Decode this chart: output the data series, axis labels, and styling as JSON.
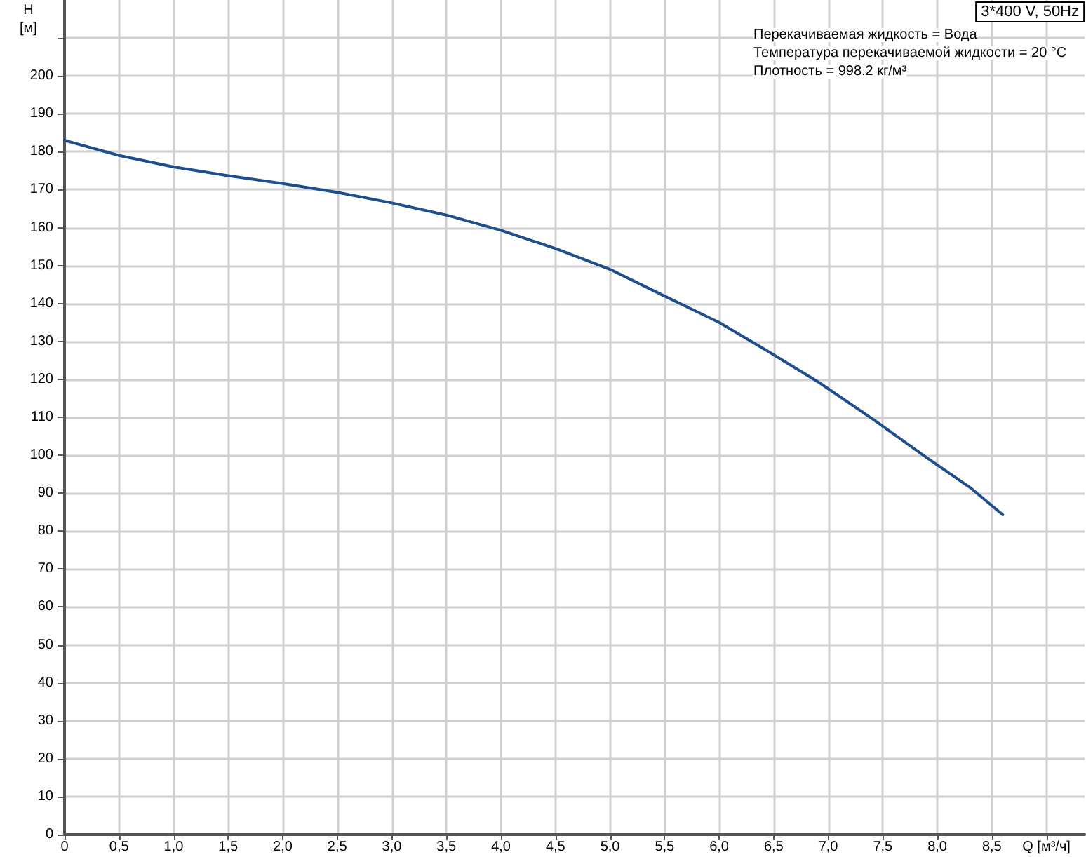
{
  "chart_data": {
    "type": "line",
    "title": "3*400 V, 50Hz",
    "annotations": [
      "Перекачиваемая жидкость = Вода",
      "Температура перекачиваемой жидкости = 20 °C",
      "Плотность = 998.2 кг/м³"
    ],
    "xlabel": "Q [м³/ч]",
    "ylabel": "H\n[м]",
    "x": [
      0,
      0.5,
      1.0,
      1.5,
      2.0,
      2.5,
      3.0,
      3.5,
      4.0,
      4.5,
      5.0,
      5.44,
      6.0,
      6.43,
      6.92,
      7.42,
      7.91,
      8.3,
      8.6
    ],
    "series": [
      {
        "color": "#1f4e8c",
        "values": [
          183,
          179,
          176,
          173.7,
          171.6,
          169.3,
          166.5,
          163.3,
          159.3,
          154.5,
          149,
          142.8,
          135,
          127.7,
          119.1,
          109.3,
          99.2,
          91.5,
          84.3
        ]
      }
    ],
    "xlim": [
      0,
      9.35
    ],
    "xticks": [
      0,
      {
        "value": 0.5,
        "label": "0,5"
      },
      {
        "value": 1,
        "label": "1,0"
      },
      {
        "value": 1.5,
        "label": "1,5"
      },
      {
        "value": 2,
        "label": "2,0"
      },
      {
        "value": 2.5,
        "label": "2,5"
      },
      {
        "value": 3,
        "label": "3,0"
      },
      {
        "value": 3.5,
        "label": "3,5"
      },
      {
        "value": 4,
        "label": "4,0"
      },
      {
        "value": 4.5,
        "label": "4,5"
      },
      {
        "value": 5,
        "label": "5,0"
      },
      {
        "value": 5.5,
        "label": "5,5"
      },
      {
        "value": 6,
        "label": "6,0"
      },
      {
        "value": 6.5,
        "label": "6,5"
      },
      {
        "value": 7,
        "label": "7,0"
      },
      {
        "value": 7.5,
        "label": "7,5"
      },
      {
        "value": 8,
        "label": "8,0"
      },
      {
        "value": 8.5,
        "label": "8,5"
      },
      {
        "value": 9,
        "label": null
      }
    ],
    "ylim": [
      0,
      220
    ],
    "yticks": [
      0,
      10,
      20,
      30,
      40,
      50,
      60,
      70,
      80,
      90,
      100,
      110,
      120,
      130,
      140,
      150,
      160,
      170,
      180,
      190,
      200,
      {
        "value": 210,
        "label": null
      }
    ],
    "grid": true,
    "marker": "none",
    "line_style": "solid"
  }
}
